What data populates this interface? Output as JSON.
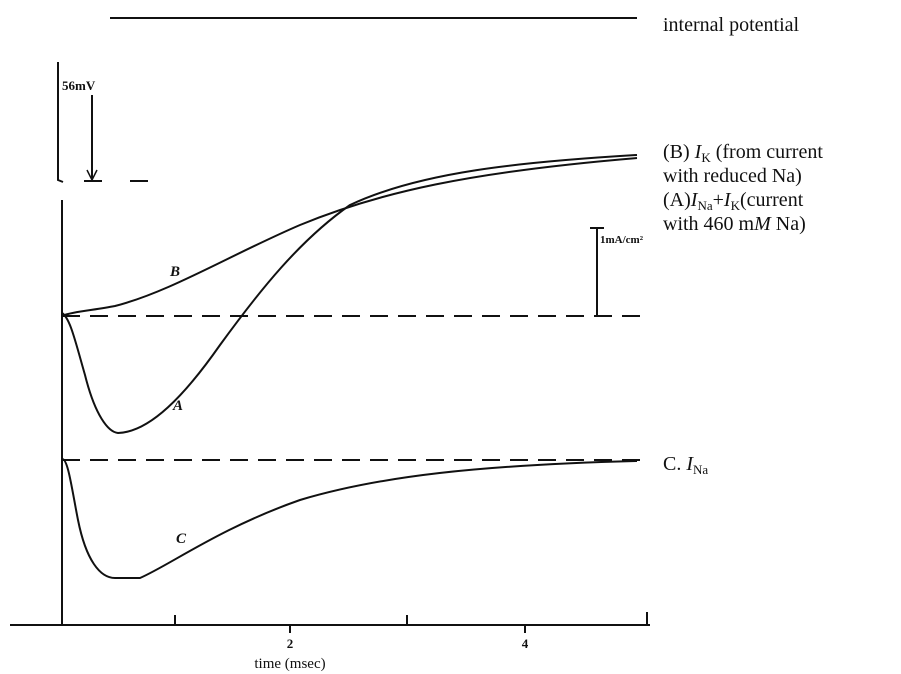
{
  "figure": {
    "top_label": "internal potential",
    "voltage_scale": "56mV",
    "current_scale": "1mA/cm²",
    "legend_b": {
      "prefix": "(B) ",
      "symbol": "I",
      "sub": "K",
      "rest": " (from current",
      "line2": "with reduced Na)"
    },
    "legend_a": {
      "prefix": "(A)",
      "symbol1": "I",
      "sub1": "Na",
      "plus": "+",
      "symbol2": "I",
      "sub2": "K",
      "rest": "(current",
      "line2_pre": "with 460 m",
      "line2_unit": "M",
      "line2_post": " Na)"
    },
    "legend_c": {
      "prefix": "C. ",
      "symbol": "I",
      "sub": "Na"
    },
    "curve_labels": {
      "b": "B",
      "a": "A",
      "c": "C"
    },
    "x_axis": {
      "tick_labels": [
        "2",
        "4"
      ],
      "label": "time (msec)"
    }
  }
}
